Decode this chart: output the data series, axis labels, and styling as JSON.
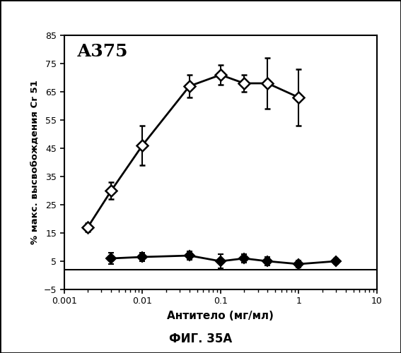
{
  "title_text": "А375",
  "xlabel": "Антитело (мг/мл)",
  "ylabel": "% макс. высвобождения Cr 51",
  "caption": "ФИГ. 35А",
  "xlim": [
    0.001,
    10
  ],
  "ylim": [
    -5,
    85
  ],
  "yticks": [
    -5,
    5,
    15,
    25,
    35,
    45,
    55,
    65,
    75,
    85
  ],
  "hline_y": 2,
  "series_open": {
    "x": [
      0.002,
      0.004,
      0.01,
      0.04,
      0.1,
      0.2,
      0.4,
      1.0
    ],
    "y": [
      17,
      30,
      46,
      67,
      71,
      68,
      68,
      63
    ],
    "yerr": [
      1.5,
      3,
      7,
      4,
      3.5,
      3,
      9,
      10
    ],
    "marker": "D",
    "markersize": 8,
    "markerfacecolor": "white",
    "markeredgecolor": "black",
    "markeredgewidth": 1.8,
    "linecolor": "black",
    "linewidth": 2
  },
  "series_filled": {
    "x": [
      0.004,
      0.01,
      0.04,
      0.1,
      0.2,
      0.4,
      1.0,
      3.0
    ],
    "y": [
      6,
      6.5,
      7,
      5,
      6,
      5,
      4,
      5
    ],
    "yerr": [
      2,
      1.5,
      1.5,
      2.5,
      1.5,
      1.5,
      1.2,
      1
    ],
    "marker": "D",
    "markersize": 7,
    "markerfacecolor": "black",
    "markeredgecolor": "black",
    "markeredgewidth": 1.5,
    "linecolor": "black",
    "linewidth": 2
  },
  "background_color": "white",
  "fig_width": 4.5,
  "fig_height": 4.1,
  "outer_border": true
}
